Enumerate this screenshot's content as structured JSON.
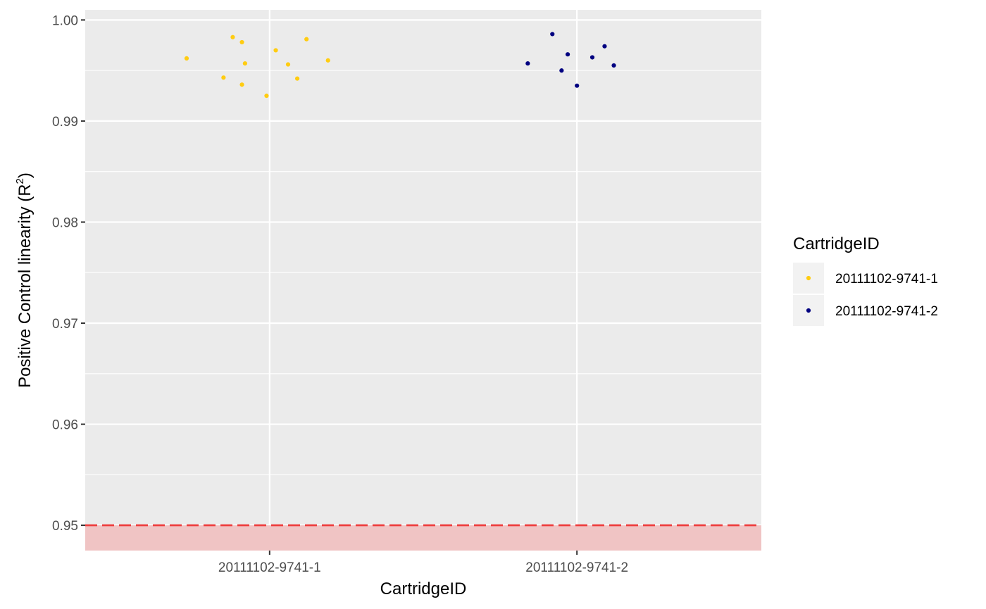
{
  "chart_data": {
    "type": "scatter",
    "xlabel": "CartridgeID",
    "ylabel": "Positive Control linearity (R",
    "ylabel_sup": "2",
    "ylabel_close": ")",
    "categories": [
      "20111102-9741-1",
      "20111102-9741-2"
    ],
    "yticks": [
      "0.95",
      "0.96",
      "0.97",
      "0.98",
      "0.99",
      "1.00"
    ],
    "ylim": [
      0.9475,
      1.001
    ],
    "grid": true,
    "threshold": {
      "value": 0.95,
      "color": "#ee3b3b",
      "band_color": "#f0c4c4"
    },
    "legend": {
      "title": "CartridgeID",
      "position": "right",
      "entries": [
        "20111102-9741-1",
        "20111102-9741-2"
      ]
    },
    "series": [
      {
        "name": "20111102-9741-1",
        "color": "#ffcc11",
        "points": [
          {
            "x": 0.73,
            "y": 0.9962
          },
          {
            "x": 0.85,
            "y": 0.9943
          },
          {
            "x": 0.88,
            "y": 0.9983
          },
          {
            "x": 0.91,
            "y": 0.9978
          },
          {
            "x": 0.91,
            "y": 0.9936
          },
          {
            "x": 0.92,
            "y": 0.9957
          },
          {
            "x": 0.99,
            "y": 0.9925
          },
          {
            "x": 1.02,
            "y": 0.997
          },
          {
            "x": 1.06,
            "y": 0.9956
          },
          {
            "x": 1.09,
            "y": 0.9942
          },
          {
            "x": 1.12,
            "y": 0.9981
          },
          {
            "x": 1.19,
            "y": 0.996
          }
        ]
      },
      {
        "name": "20111102-9741-2",
        "color": "#000080",
        "points": [
          {
            "x": 1.84,
            "y": 0.9957
          },
          {
            "x": 1.92,
            "y": 0.9986
          },
          {
            "x": 1.95,
            "y": 0.995
          },
          {
            "x": 1.97,
            "y": 0.9966
          },
          {
            "x": 2.0,
            "y": 0.9935
          },
          {
            "x": 2.05,
            "y": 0.9963
          },
          {
            "x": 2.09,
            "y": 0.9974
          },
          {
            "x": 2.12,
            "y": 0.9955
          }
        ]
      }
    ]
  }
}
